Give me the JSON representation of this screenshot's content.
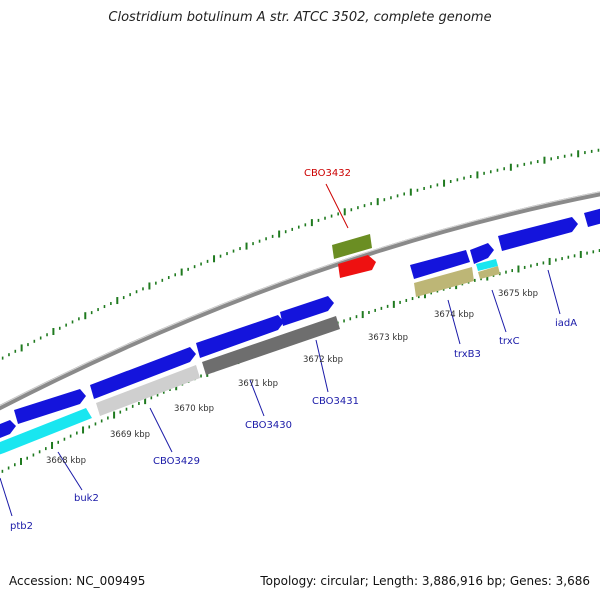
{
  "title": "Clostridium botulinum A str. ATCC 3502, complete genome",
  "footer": {
    "accession": "Accession: NC_009495",
    "summary": "Topology: circular; Length: 3,886,916 bp; Genes: 3,686"
  },
  "colors": {
    "backbone": "#8a8a8a",
    "tick": "#1f7a1f",
    "gene_label": "#1a1aa8",
    "highlight_label": "#cc0000",
    "blue": "#1414dc",
    "cyan": "#19e6f0",
    "light_gray": "#cfcfcf",
    "dark_gray": "#6e6e6e",
    "khaki": "#bdb676",
    "olive": "#6b8e23",
    "red": "#ee1111"
  },
  "ruler": {
    "kbp_labels": [
      "3668 kbp",
      "3669 kbp",
      "3670 kbp",
      "3671 kbp",
      "3672 kbp",
      "3673 kbp",
      "3674 kbp",
      "3675 kbp"
    ]
  },
  "gene_labels": [
    "ptb2",
    "buk2",
    "CBO3429",
    "CBO3430",
    "CBO3431",
    "trxB3",
    "trxC",
    "iadA"
  ],
  "highlight_label": "CBO3432"
}
